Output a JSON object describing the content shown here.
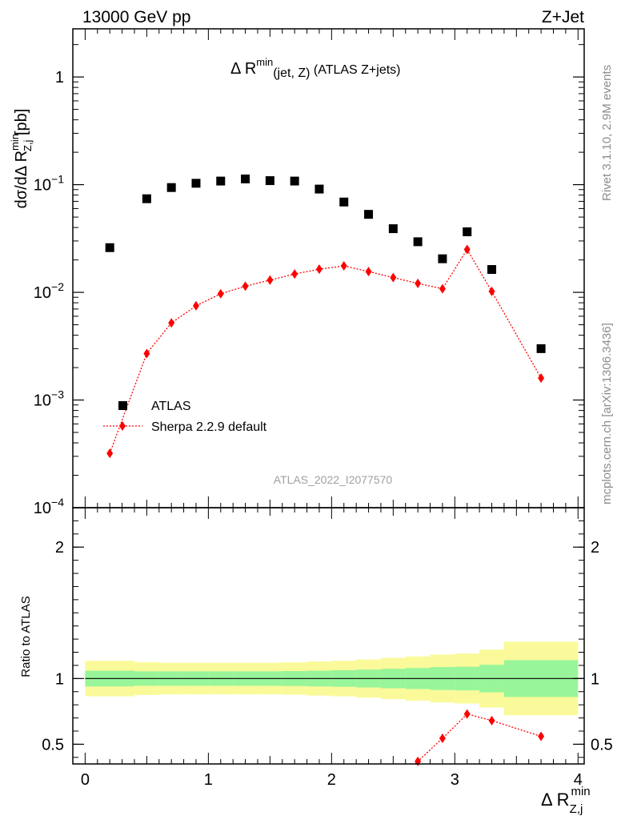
{
  "header": {
    "energy_label": "13000 GeV pp",
    "process_label": "Z+Jet",
    "title_delta": "Δ R",
    "title_sup": "min",
    "title_sub": "(jet, Z)",
    "title_rest": " (ATLAS Z+jets)"
  },
  "side": {
    "rivet": "Rivet 3.1.10,  2.9M events",
    "mcplots": "mcplots.cern.ch [arXiv:1306.3436]"
  },
  "watermark": "ATLAS_2022_I2077570",
  "legend": {
    "data_label": "ATLAS",
    "mc_label": "Sherpa 2.2.9 default"
  },
  "colors": {
    "data": "#000000",
    "mc": "#ff0000",
    "band_inner": "#99f599",
    "band_outer": "#fafa9a"
  },
  "axes": {
    "main_ylabel_a": "dσ/dΔ R",
    "main_ylabel_sup": "min",
    "main_ylabel_sub": "Z,j",
    "main_ylabel_b": " [pb]",
    "ratio_ylabel": "Ratio to ATLAS",
    "xlabel_main": "Δ R",
    "xlabel_sup": "min",
    "xlabel_sub": "Z,j",
    "main_yticks": [
      {
        "mant": "10",
        "exp": "−4",
        "value": 0.0001
      },
      {
        "mant": "10",
        "exp": "−3",
        "value": 0.001
      },
      {
        "mant": "10",
        "exp": "−2",
        "value": 0.01
      },
      {
        "mant": "10",
        "exp": "−1",
        "value": 0.1
      },
      {
        "mant": "1",
        "exp": "",
        "value": 1
      }
    ],
    "ratio_yticks": [
      {
        "label": "0.5",
        "value": 0.5
      },
      {
        "label": "1",
        "value": 1
      },
      {
        "label": "2",
        "value": 2
      }
    ],
    "xticks": [
      {
        "label": "0",
        "value": 0
      },
      {
        "label": "1",
        "value": 1
      },
      {
        "label": "2",
        "value": 2
      },
      {
        "label": "3",
        "value": 3
      },
      {
        "label": "4",
        "value": 4
      }
    ]
  },
  "chart_data": {
    "type": "scatter",
    "title": "Δ R min(jet, Z) (ATLAS Z+jets)",
    "xlabel": "Δ R min Z,j",
    "ylabel": "dσ/dΔ R min Z,j [pb]",
    "xlim": [
      -0.1,
      4.05
    ],
    "ylim_main": [
      0.0001,
      2.8
    ],
    "ylim_ratio": [
      0.35,
      2.3
    ],
    "yscale_main": "log",
    "series": [
      {
        "name": "ATLAS",
        "x": [
          0.2,
          0.5,
          0.7,
          0.9,
          1.1,
          1.3,
          1.5,
          1.7,
          1.9,
          2.1,
          2.3,
          2.5,
          2.7,
          2.9,
          3.1,
          3.3,
          3.7
        ],
        "values": [
          0.026,
          0.074,
          0.094,
          0.103,
          0.108,
          0.113,
          0.109,
          0.108,
          0.091,
          0.069,
          0.053,
          0.039,
          0.0295,
          0.0205,
          0.0365,
          0.0163,
          0.003
        ]
      },
      {
        "name": "Sherpa 2.2.9 default",
        "x": [
          0.2,
          0.5,
          0.7,
          0.9,
          1.1,
          1.3,
          1.5,
          1.7,
          1.9,
          2.1,
          2.3,
          2.5,
          2.7,
          2.9,
          3.1,
          3.3,
          3.7
        ],
        "values": [
          0.00032,
          0.0027,
          0.0052,
          0.0075,
          0.0097,
          0.0114,
          0.013,
          0.0148,
          0.0164,
          0.0176,
          0.0156,
          0.0137,
          0.0121,
          0.0108,
          0.025,
          0.0102,
          0.0016
        ]
      }
    ],
    "ratio": {
      "name": "Sherpa 2.2.9 default / ATLAS",
      "x": [
        2.7,
        2.9,
        3.1,
        3.3,
        3.7
      ],
      "values": [
        0.37,
        0.545,
        0.73,
        0.68,
        0.56
      ]
    },
    "uncertainty_bands": [
      {
        "x0": 0.0,
        "x1": 0.4,
        "inner": 0.06,
        "outer": 0.135
      },
      {
        "x0": 0.4,
        "x1": 0.6,
        "inner": 0.055,
        "outer": 0.125
      },
      {
        "x0": 0.6,
        "x1": 0.8,
        "inner": 0.055,
        "outer": 0.12
      },
      {
        "x0": 0.8,
        "x1": 1.0,
        "inner": 0.055,
        "outer": 0.12
      },
      {
        "x0": 1.0,
        "x1": 1.2,
        "inner": 0.055,
        "outer": 0.12
      },
      {
        "x0": 1.2,
        "x1": 1.4,
        "inner": 0.055,
        "outer": 0.12
      },
      {
        "x0": 1.4,
        "x1": 1.6,
        "inner": 0.055,
        "outer": 0.12
      },
      {
        "x0": 1.6,
        "x1": 1.8,
        "inner": 0.057,
        "outer": 0.123
      },
      {
        "x0": 1.8,
        "x1": 2.0,
        "inner": 0.06,
        "outer": 0.13
      },
      {
        "x0": 2.0,
        "x1": 2.2,
        "inner": 0.063,
        "outer": 0.135
      },
      {
        "x0": 2.2,
        "x1": 2.4,
        "inner": 0.068,
        "outer": 0.145
      },
      {
        "x0": 2.4,
        "x1": 2.6,
        "inner": 0.074,
        "outer": 0.157
      },
      {
        "x0": 2.6,
        "x1": 2.8,
        "inner": 0.08,
        "outer": 0.168
      },
      {
        "x0": 2.8,
        "x1": 3.0,
        "inner": 0.087,
        "outer": 0.182
      },
      {
        "x0": 3.0,
        "x1": 3.2,
        "inner": 0.09,
        "outer": 0.19
      },
      {
        "x0": 3.2,
        "x1": 3.4,
        "inner": 0.105,
        "outer": 0.22
      },
      {
        "x0": 3.4,
        "x1": 4.0,
        "inner": 0.14,
        "outer": 0.28
      }
    ]
  }
}
